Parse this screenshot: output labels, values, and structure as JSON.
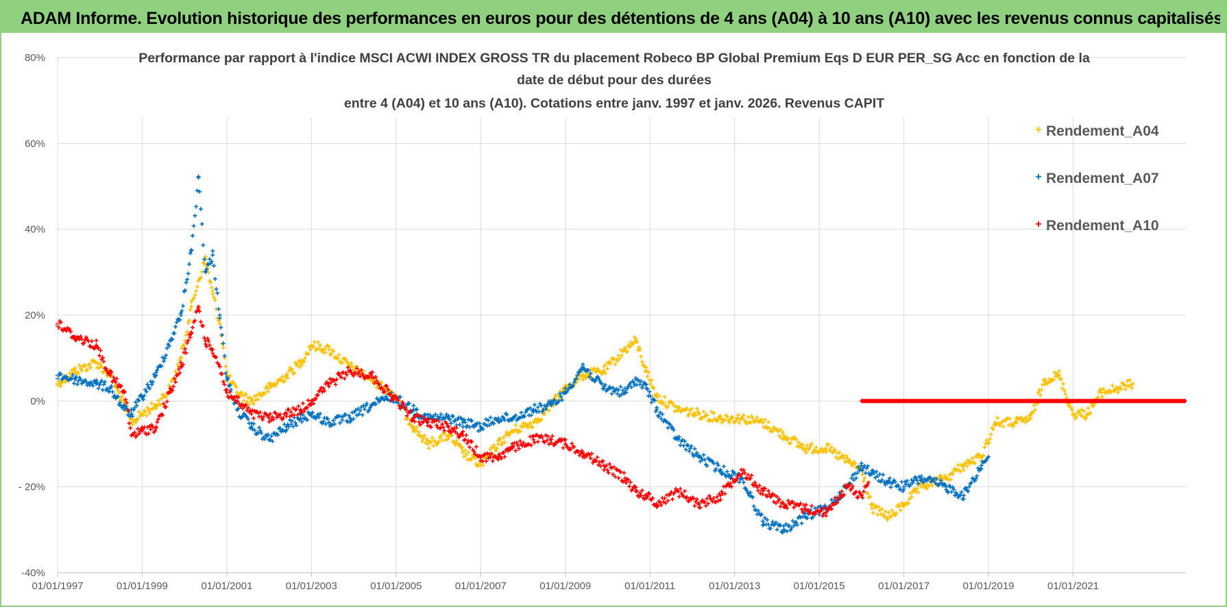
{
  "banner": {
    "title": "ADAM Informe. Evolution historique des performances en euros pour des détentions de 4 ans (A04) à 10 ans (A10) avec les revenus connus capitalisés"
  },
  "colors": {
    "banner_bg": "#8fd17f",
    "A04": "#ffc000",
    "A07": "#0070c0",
    "A10": "#ff0000",
    "grid": "#d9d9d9",
    "text": "#595959"
  },
  "chart_data": {
    "type": "scatter",
    "title": [
      "Performance par rapport à l'indice MSCI ACWI INDEX GROSS TR  du placement Robeco BP Global Premium Eqs D EUR PER_SG Acc  en fonction de la",
      "date de début pour des durées",
      "entre 4 (A04) et 10 ans (A10).  Cotations entre janv. 1997 et janv. 2026. Revenus CAPIT"
    ],
    "xlabel": "",
    "ylabel": "",
    "x_range": [
      "1997-01-01",
      "2023-09-01"
    ],
    "ylim": [
      -40,
      80
    ],
    "y_ticks": [
      {
        "value": 80,
        "label": "80%"
      },
      {
        "value": 60,
        "label": "60%"
      },
      {
        "value": 40,
        "label": "40%"
      },
      {
        "value": 20,
        "label": "20%"
      },
      {
        "value": 0,
        "label": "0%"
      },
      {
        "value": -20,
        "label": "- 20%"
      },
      {
        "value": -40,
        "label": "-40%"
      }
    ],
    "x_ticks": [
      {
        "value": "1997-01-01",
        "label": "01/01/1997"
      },
      {
        "value": "1999-01-01",
        "label": "01/01/1999"
      },
      {
        "value": "2001-01-01",
        "label": "01/01/2001"
      },
      {
        "value": "2003-01-01",
        "label": "01/01/2003"
      },
      {
        "value": "2005-01-01",
        "label": "01/01/2005"
      },
      {
        "value": "2007-01-01",
        "label": "01/01/2007"
      },
      {
        "value": "2009-01-01",
        "label": "01/01/2009"
      },
      {
        "value": "2011-01-01",
        "label": "01/01/2011"
      },
      {
        "value": "2013-01-01",
        "label": "01/01/2013"
      },
      {
        "value": "2015-01-01",
        "label": "01/01/2015"
      },
      {
        "value": "2017-01-01",
        "label": "01/01/2017"
      },
      {
        "value": "2019-01-01",
        "label": "01/01/2019"
      },
      {
        "value": "2021-01-01",
        "label": "01/01/2021"
      }
    ],
    "grid": true,
    "legend_position": "top-right",
    "marker": "plus",
    "series": [
      {
        "name": "Rendement_A04",
        "color": "#ffc000",
        "points": [
          [
            "1997-01-01",
            4
          ],
          [
            "1997-06-01",
            7
          ],
          [
            "1997-12-01",
            9
          ],
          [
            "1998-04-01",
            6
          ],
          [
            "1998-08-01",
            -1
          ],
          [
            "1998-10-01",
            -5
          ],
          [
            "1999-01-01",
            -3
          ],
          [
            "1999-05-01",
            -1
          ],
          [
            "1999-09-01",
            3
          ],
          [
            "1999-12-01",
            10
          ],
          [
            "2000-03-01",
            22
          ],
          [
            "2000-05-01",
            28
          ],
          [
            "2000-07-01",
            33
          ],
          [
            "2000-09-01",
            25
          ],
          [
            "2000-11-01",
            18
          ],
          [
            "2001-01-01",
            6
          ],
          [
            "2001-04-01",
            2
          ],
          [
            "2001-08-01",
            0
          ],
          [
            "2002-01-01",
            3
          ],
          [
            "2002-06-01",
            6
          ],
          [
            "2002-10-01",
            9
          ],
          [
            "2003-01-01",
            13
          ],
          [
            "2003-06-01",
            12
          ],
          [
            "2003-12-01",
            8
          ],
          [
            "2004-06-01",
            5
          ],
          [
            "2004-12-01",
            2
          ],
          [
            "2005-06-01",
            -6
          ],
          [
            "2005-10-01",
            -10
          ],
          [
            "2006-04-01",
            -8
          ],
          [
            "2006-08-01",
            -12
          ],
          [
            "2007-01-01",
            -15
          ],
          [
            "2007-06-01",
            -10
          ],
          [
            "2007-10-01",
            -7
          ],
          [
            "2008-04-01",
            -5
          ],
          [
            "2008-09-01",
            -1
          ],
          [
            "2009-01-01",
            3
          ],
          [
            "2009-06-01",
            6
          ],
          [
            "2009-12-01",
            7
          ],
          [
            "2010-06-01",
            12
          ],
          [
            "2010-09-01",
            14
          ],
          [
            "2010-12-01",
            7
          ],
          [
            "2011-03-01",
            1
          ],
          [
            "2011-09-01",
            -2
          ],
          [
            "2012-03-01",
            -3
          ],
          [
            "2012-09-01",
            -4
          ],
          [
            "2013-03-01",
            -4
          ],
          [
            "2013-09-01",
            -5
          ],
          [
            "2014-03-01",
            -8
          ],
          [
            "2014-09-01",
            -11
          ],
          [
            "2015-03-01",
            -11
          ],
          [
            "2015-09-01",
            -14
          ],
          [
            "2016-01-01",
            -16
          ],
          [
            "2016-04-01",
            -25
          ],
          [
            "2016-09-01",
            -27
          ],
          [
            "2017-01-01",
            -24
          ],
          [
            "2017-06-01",
            -20
          ],
          [
            "2018-01-01",
            -18
          ],
          [
            "2018-06-01",
            -15
          ],
          [
            "2018-11-01",
            -13
          ],
          [
            "2019-03-01",
            -5
          ],
          [
            "2019-09-01",
            -5
          ],
          [
            "2020-01-01",
            -4
          ],
          [
            "2020-05-01",
            5
          ],
          [
            "2020-09-01",
            6
          ],
          [
            "2021-01-01",
            -3
          ],
          [
            "2021-05-01",
            -3
          ],
          [
            "2021-09-01",
            2
          ],
          [
            "2022-02-01",
            3
          ],
          [
            "2022-06-01",
            4
          ]
        ]
      },
      {
        "name": "Rendement_A07",
        "color": "#0070c0",
        "points": [
          [
            "1997-01-01",
            6
          ],
          [
            "1997-06-01",
            5
          ],
          [
            "1997-12-01",
            4
          ],
          [
            "1998-04-01",
            3
          ],
          [
            "1998-08-01",
            -2
          ],
          [
            "1998-10-01",
            -3
          ],
          [
            "1999-01-01",
            1
          ],
          [
            "1999-05-01",
            6
          ],
          [
            "1999-09-01",
            14
          ],
          [
            "1999-12-01",
            20
          ],
          [
            "2000-03-01",
            35
          ],
          [
            "2000-05-01",
            52
          ],
          [
            "2000-07-01",
            30
          ],
          [
            "2000-09-01",
            34
          ],
          [
            "2000-11-01",
            20
          ],
          [
            "2001-01-01",
            5
          ],
          [
            "2001-04-01",
            -2
          ],
          [
            "2001-08-01",
            -6
          ],
          [
            "2002-01-01",
            -9
          ],
          [
            "2002-06-01",
            -6
          ],
          [
            "2002-10-01",
            -4
          ],
          [
            "2003-01-01",
            -3
          ],
          [
            "2003-06-01",
            -5
          ],
          [
            "2003-12-01",
            -4
          ],
          [
            "2004-06-01",
            -1
          ],
          [
            "2004-12-01",
            1
          ],
          [
            "2005-06-01",
            -2
          ],
          [
            "2005-10-01",
            -4
          ],
          [
            "2006-04-01",
            -4
          ],
          [
            "2006-08-01",
            -5
          ],
          [
            "2007-01-01",
            -6
          ],
          [
            "2007-06-01",
            -4
          ],
          [
            "2007-10-01",
            -4
          ],
          [
            "2008-04-01",
            -2
          ],
          [
            "2008-09-01",
            -1
          ],
          [
            "2009-01-01",
            2
          ],
          [
            "2009-06-01",
            8
          ],
          [
            "2009-12-01",
            3
          ],
          [
            "2010-06-01",
            2
          ],
          [
            "2010-09-01",
            5
          ],
          [
            "2010-12-01",
            3
          ],
          [
            "2011-03-01",
            -2
          ],
          [
            "2011-09-01",
            -9
          ],
          [
            "2012-03-01",
            -13
          ],
          [
            "2012-09-01",
            -16
          ],
          [
            "2013-03-01",
            -18
          ],
          [
            "2013-09-01",
            -28
          ],
          [
            "2014-03-01",
            -30
          ],
          [
            "2014-09-01",
            -27
          ],
          [
            "2015-03-01",
            -25
          ],
          [
            "2015-09-01",
            -20
          ],
          [
            "2016-01-01",
            -15
          ],
          [
            "2016-04-01",
            -17
          ],
          [
            "2016-09-01",
            -19
          ],
          [
            "2017-01-01",
            -20
          ],
          [
            "2017-06-01",
            -18
          ],
          [
            "2018-01-01",
            -20
          ],
          [
            "2018-06-01",
            -22
          ],
          [
            "2018-11-01",
            -15
          ],
          [
            "2019-01-01",
            -13
          ]
        ]
      },
      {
        "name": "Rendement_A10",
        "color": "#ff0000",
        "points": [
          [
            "1997-01-01",
            18
          ],
          [
            "1997-06-01",
            15
          ],
          [
            "1997-12-01",
            13
          ],
          [
            "1998-04-01",
            6
          ],
          [
            "1998-08-01",
            2
          ],
          [
            "1998-10-01",
            -8
          ],
          [
            "1999-01-01",
            -7
          ],
          [
            "1999-05-01",
            -6
          ],
          [
            "1999-09-01",
            2
          ],
          [
            "1999-12-01",
            8
          ],
          [
            "2000-03-01",
            16
          ],
          [
            "2000-05-01",
            22
          ],
          [
            "2000-07-01",
            14
          ],
          [
            "2000-09-01",
            12
          ],
          [
            "2000-11-01",
            8
          ],
          [
            "2001-01-01",
            2
          ],
          [
            "2001-04-01",
            0
          ],
          [
            "2001-08-01",
            -3
          ],
          [
            "2002-01-01",
            -4
          ],
          [
            "2002-06-01",
            -3
          ],
          [
            "2002-10-01",
            -2
          ],
          [
            "2003-01-01",
            0
          ],
          [
            "2003-06-01",
            4
          ],
          [
            "2003-12-01",
            7
          ],
          [
            "2004-06-01",
            6
          ],
          [
            "2004-12-01",
            1
          ],
          [
            "2005-06-01",
            -4
          ],
          [
            "2005-10-01",
            -5
          ],
          [
            "2006-04-01",
            -6
          ],
          [
            "2006-08-01",
            -8
          ],
          [
            "2007-01-01",
            -13
          ],
          [
            "2007-06-01",
            -13
          ],
          [
            "2007-10-01",
            -11
          ],
          [
            "2008-04-01",
            -9
          ],
          [
            "2008-09-01",
            -9
          ],
          [
            "2009-01-01",
            -10
          ],
          [
            "2009-06-01",
            -12
          ],
          [
            "2009-12-01",
            -15
          ],
          [
            "2010-06-01",
            -18
          ],
          [
            "2010-09-01",
            -21
          ],
          [
            "2010-12-01",
            -22
          ],
          [
            "2011-03-01",
            -24
          ],
          [
            "2011-09-01",
            -21
          ],
          [
            "2012-03-01",
            -24
          ],
          [
            "2012-09-01",
            -22
          ],
          [
            "2013-03-01",
            -16
          ],
          [
            "2013-09-01",
            -21
          ],
          [
            "2014-03-01",
            -24
          ],
          [
            "2014-09-01",
            -25
          ],
          [
            "2015-03-01",
            -26
          ],
          [
            "2015-09-01",
            -20
          ],
          [
            "2016-01-01",
            -22
          ],
          [
            "2016-03-01",
            -19
          ]
        ],
        "flat_segment": {
          "from": "2016-01-01",
          "to": "2023-09-01",
          "value": 0
        }
      }
    ]
  }
}
